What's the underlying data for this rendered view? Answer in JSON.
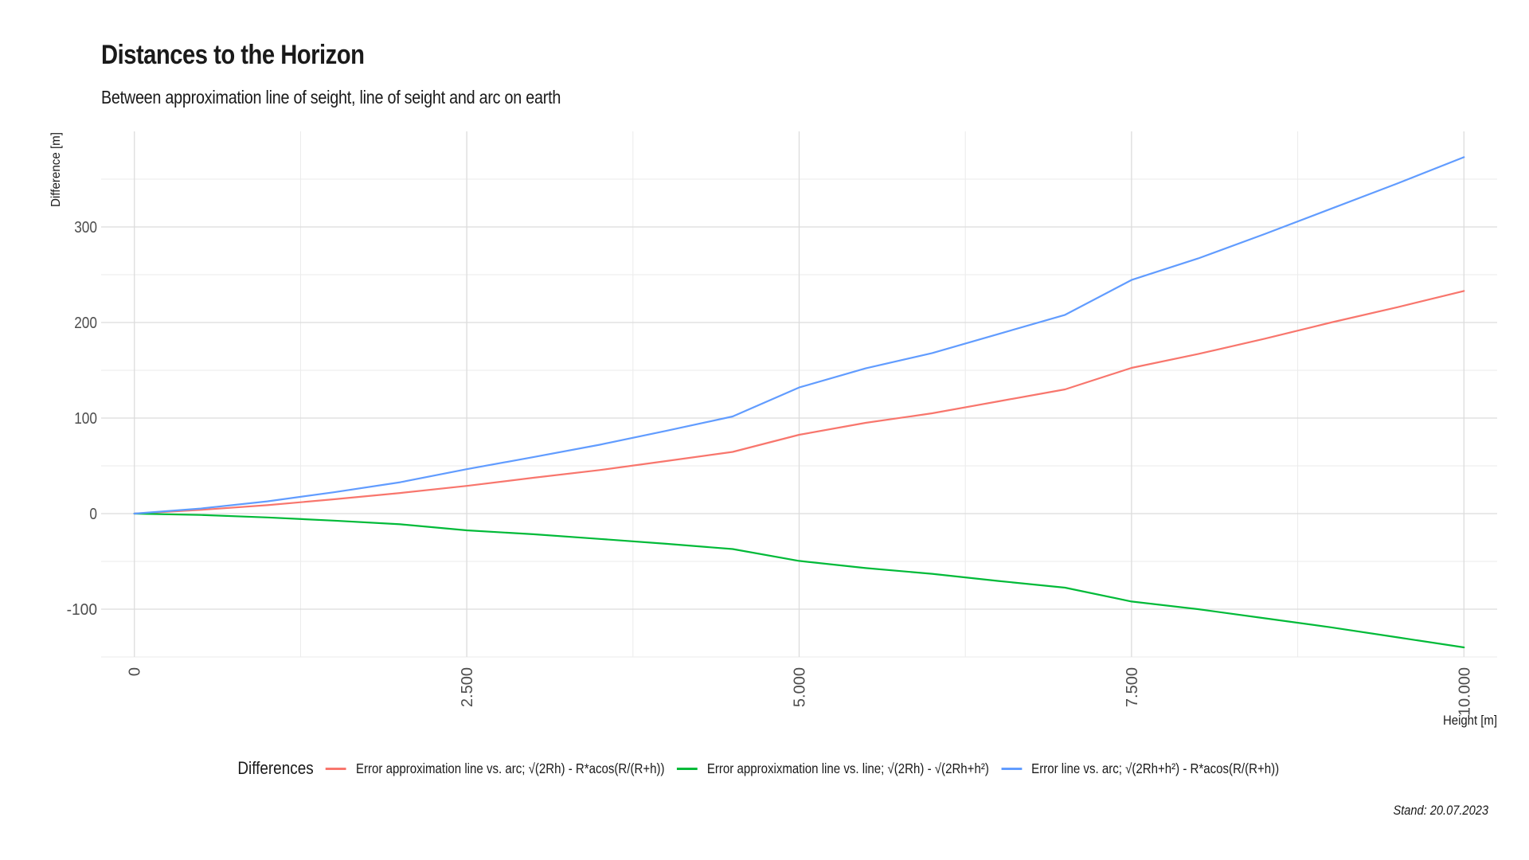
{
  "chart_data": {
    "type": "line",
    "title": "Distances to the Horizon",
    "subtitle": "Between approximation line of seight, line of seight and arc on earth",
    "xlabel": "Height [m]",
    "ylabel": "Difference [m]",
    "caption": "Stand: 20.07.2023",
    "xlim": [
      -250,
      10250
    ],
    "ylim": [
      -150,
      400
    ],
    "x_ticks": [
      0,
      2500,
      5000,
      7500,
      10000
    ],
    "x_tick_labels": [
      "0",
      "2.500",
      "5.000",
      "7.500",
      "10.000"
    ],
    "y_ticks": [
      -100,
      0,
      100,
      200,
      300
    ],
    "y_tick_labels": [
      "-100",
      "0",
      "100",
      "200",
      "300"
    ],
    "grid": true,
    "legend": {
      "title": "Differences",
      "position": "bottom"
    },
    "x": [
      0,
      500,
      1000,
      1500,
      2000,
      2500,
      3000,
      3500,
      4000,
      4500,
      5000,
      5500,
      6000,
      6500,
      7000,
      7500,
      8000,
      8500,
      9000,
      9500,
      10000
    ],
    "series": [
      {
        "name": "Error approximation line vs. arc; √(2Rh) - R*acos(R/(R+h))",
        "color": "#F8766D",
        "values": [
          0,
          3.9,
          8.8,
          15.0,
          21.6,
          29.0,
          37.5,
          45.6,
          55.0,
          64.6,
          82.5,
          95.0,
          105.0,
          117.5,
          130.0,
          152.5,
          167.0,
          183.0,
          200.0,
          216.0,
          233.0
        ]
      },
      {
        "name": "Error approxixmation line vs. line; √(2Rh) - √(2Rh+h²)",
        "color": "#00BA38",
        "values": [
          0,
          -1.4,
          -4.0,
          -7.3,
          -11.2,
          -17.5,
          -21.6,
          -26.5,
          -31.6,
          -37.1,
          -49.5,
          -57.0,
          -63.0,
          -70.5,
          -77.5,
          -92.0,
          -100.0,
          -109.5,
          -119.0,
          -129.5,
          -140.0
        ]
      },
      {
        "name": "Error line vs. arc; √(2Rh+h²) - R*acos(R/(R+h))",
        "color": "#619CFF",
        "values": [
          0,
          5.3,
          12.8,
          22.3,
          32.8,
          46.5,
          59.1,
          72.1,
          86.6,
          101.7,
          132.0,
          152.0,
          168.0,
          188.0,
          208.0,
          244.5,
          267.0,
          292.5,
          319.0,
          345.5,
          373.0
        ]
      }
    ]
  }
}
